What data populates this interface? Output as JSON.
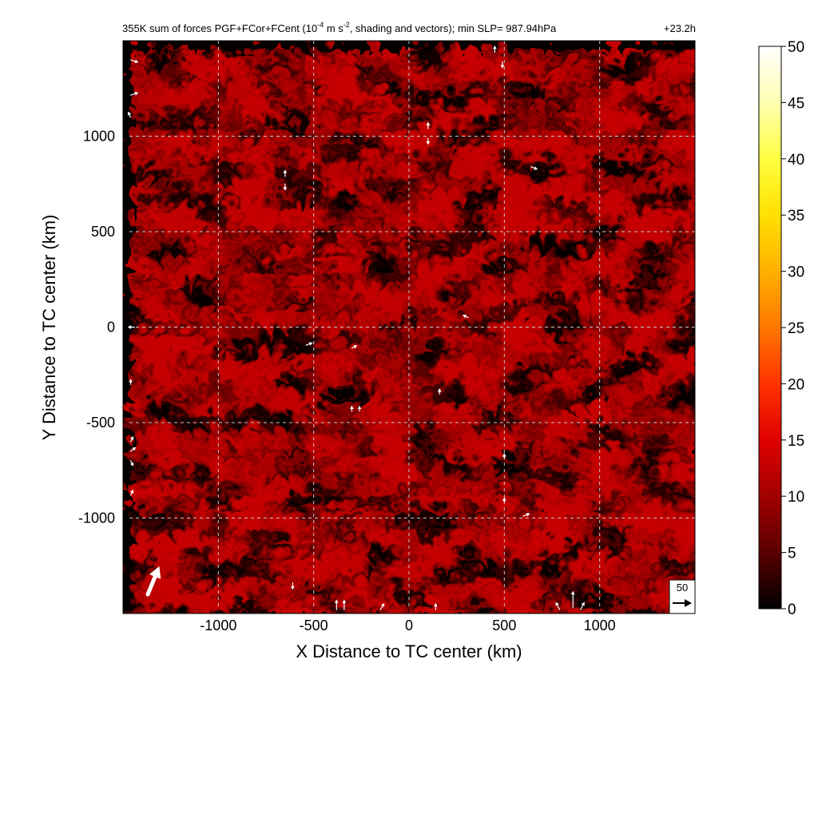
{
  "chart_data": {
    "type": "heatmap",
    "title": "355K sum of forces PGF+FCor+FCent (10",
    "title_exp1": "-4",
    "title_mid": " m s",
    "title_exp2": "-2",
    "title_tail": ", shading and vectors); min SLP= 987.94hPa",
    "time_label": "+23.2h",
    "xlabel": "X Distance to TC center (km)",
    "ylabel": "Y Distance to TC center (km)",
    "xlim": [
      -1500,
      1500
    ],
    "ylim": [
      -1500,
      1500
    ],
    "x_ticks": [
      -1000,
      -500,
      0,
      500,
      1000
    ],
    "y_ticks": [
      -1000,
      -500,
      0,
      500,
      1000
    ],
    "x_tick_labels": [
      "-1000",
      "-500",
      "0",
      "500",
      "1000"
    ],
    "y_tick_labels": [
      "-1000",
      "-500",
      "0",
      "500",
      "1000"
    ],
    "grid": true,
    "grid_style": "dashed",
    "colorbar": {
      "min": 0,
      "max": 50,
      "ticks": [
        0,
        5,
        10,
        15,
        20,
        25,
        30,
        35,
        40,
        45,
        50
      ],
      "tick_labels": [
        "0",
        "5",
        "10",
        "15",
        "20",
        "25",
        "30",
        "35",
        "40",
        "45",
        "50"
      ],
      "colors": [
        "#000000",
        "#5a0000",
        "#a00000",
        "#e00000",
        "#ff3300",
        "#ff7700",
        "#ffb000",
        "#ffe000",
        "#ffff40",
        "#ffffb0",
        "#ffffff"
      ]
    },
    "field_description_values": {
      "typical_range": [
        0,
        12
      ],
      "dominant_value": 7
    },
    "reference_vector": {
      "magnitude_label": "50",
      "magnitude": 50,
      "direction": "east"
    },
    "large_vector": {
      "x": -1370,
      "y": -1400,
      "u": 9,
      "v": 22
    },
    "small_vectors": [
      {
        "x": -1460,
        "y": 1400,
        "u": 6,
        "v": -2
      },
      {
        "x": -1460,
        "y": 1215,
        "u": 6,
        "v": 2
      },
      {
        "x": -1460,
        "y": 1100,
        "u": -2,
        "v": 4
      },
      {
        "x": -1440,
        "y": 0,
        "u": -5,
        "v": 0
      },
      {
        "x": -1460,
        "y": -300,
        "u": 0,
        "v": 4
      },
      {
        "x": -1460,
        "y": -600,
        "u": 2,
        "v": 4
      },
      {
        "x": -1460,
        "y": -650,
        "u": 4,
        "v": 3
      },
      {
        "x": -1460,
        "y": -700,
        "u": 2,
        "v": -4
      },
      {
        "x": -1460,
        "y": -880,
        "u": 2,
        "v": 4
      },
      {
        "x": -650,
        "y": 790,
        "u": 0,
        "v": 5
      },
      {
        "x": -650,
        "y": 750,
        "u": 0,
        "v": -5
      },
      {
        "x": -540,
        "y": -95,
        "u": 5,
        "v": 2
      },
      {
        "x": -300,
        "y": -110,
        "u": 4,
        "v": 2
      },
      {
        "x": -300,
        "y": -440,
        "u": 0,
        "v": 4
      },
      {
        "x": -260,
        "y": -440,
        "u": 0,
        "v": 4
      },
      {
        "x": 100,
        "y": 1040,
        "u": 0,
        "v": 5
      },
      {
        "x": 100,
        "y": 990,
        "u": 0,
        "v": -5
      },
      {
        "x": 160,
        "y": -350,
        "u": 0,
        "v": 4
      },
      {
        "x": 310,
        "y": 50,
        "u": -4,
        "v": 2
      },
      {
        "x": 450,
        "y": 1440,
        "u": 0,
        "v": 5
      },
      {
        "x": 490,
        "y": 1390,
        "u": 0,
        "v": -5
      },
      {
        "x": 500,
        "y": -690,
        "u": 0,
        "v": 4
      },
      {
        "x": 500,
        "y": -890,
        "u": 0,
        "v": -4
      },
      {
        "x": 600,
        "y": -990,
        "u": 5,
        "v": 2
      },
      {
        "x": 640,
        "y": 840,
        "u": 5,
        "v": -2
      },
      {
        "x": -610,
        "y": -1340,
        "u": 0,
        "v": -5
      },
      {
        "x": -380,
        "y": -1480,
        "u": 0,
        "v": 8
      },
      {
        "x": -340,
        "y": -1480,
        "u": 0,
        "v": 8
      },
      {
        "x": -150,
        "y": -1480,
        "u": 3,
        "v": 5
      },
      {
        "x": 140,
        "y": -1480,
        "u": 0,
        "v": 5
      },
      {
        "x": 790,
        "y": -1480,
        "u": -3,
        "v": 6
      },
      {
        "x": 860,
        "y": -1470,
        "u": 0,
        "v": 14
      },
      {
        "x": 900,
        "y": -1480,
        "u": 3,
        "v": 6
      }
    ]
  }
}
